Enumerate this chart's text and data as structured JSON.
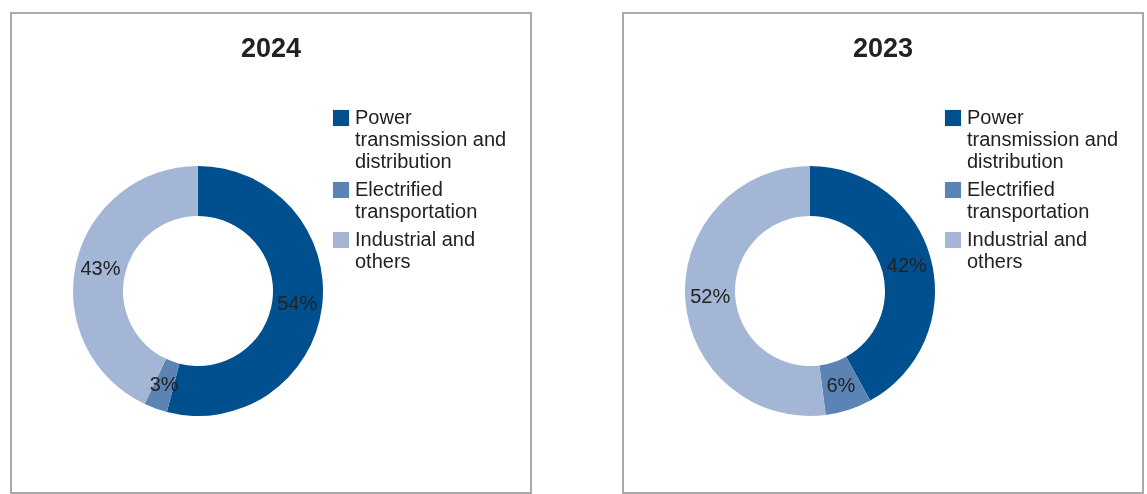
{
  "chart_data": [
    {
      "type": "donut",
      "title": "2024",
      "categories": [
        "Power transmission and distribution",
        "Electrified transportation",
        "Industrial and others"
      ],
      "values": [
        54,
        3,
        43
      ],
      "value_labels": [
        "54%",
        "3%",
        "43%"
      ],
      "colors": [
        "#00508f",
        "#5b84b5",
        "#a3b6d6"
      ],
      "legend": "right"
    },
    {
      "type": "donut",
      "title": "2023",
      "categories": [
        "Power transmission and distribution",
        "Electrified transportation",
        "Industrial and others"
      ],
      "values": [
        42,
        6,
        52
      ],
      "value_labels": [
        "42%",
        "6%",
        "52%"
      ],
      "colors": [
        "#00508f",
        "#5b84b5",
        "#a3b6d6"
      ],
      "legend": "right"
    }
  ]
}
